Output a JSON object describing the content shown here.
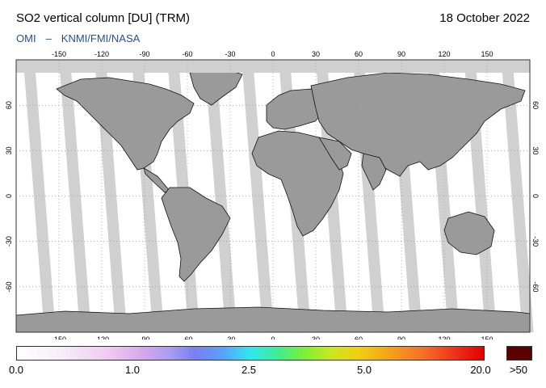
{
  "header": {
    "title": "SO2 vertical column [DU] (TRM)",
    "date": "18 October 2022",
    "source_left": "OMI",
    "separator": "–",
    "source_right": "KNMI/FMI/NASA"
  },
  "map": {
    "lon_ticks": [
      "-150",
      "-120",
      "-90",
      "-60",
      "-30",
      "0",
      "30",
      "60",
      "90",
      "120",
      "150"
    ],
    "lat_ticks": [
      "60",
      "30",
      "0",
      "-30",
      "-60"
    ],
    "colors": {
      "ocean": "#ffffff",
      "land": "#9a9a9a",
      "no_data": "#d0d0d0",
      "swath_gap": "#d0d0d0",
      "coastline": "#000000",
      "grid": "#888888"
    }
  },
  "colorbar": {
    "labels": [
      "0.0",
      "1.0",
      "2.5",
      "5.0",
      "20.0",
      ">50"
    ],
    "overflow_color": "#5a0000"
  }
}
